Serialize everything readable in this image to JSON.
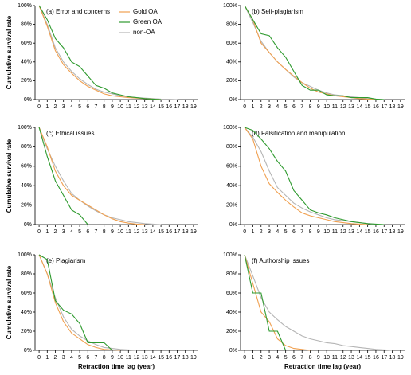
{
  "chart_data": [
    {
      "type": "line",
      "title": "(a) Error and concerns",
      "ylabel": "Cumulative survival rate",
      "legend": "top-right",
      "x": [
        0,
        1,
        2,
        3,
        4,
        5,
        6,
        7,
        8,
        9,
        10,
        11,
        12,
        13,
        14,
        15,
        16,
        17,
        18,
        19
      ],
      "xlim": [
        -0.5,
        19.5
      ],
      "xticks": [
        0,
        1,
        2,
        3,
        4,
        5,
        6,
        7,
        8,
        9,
        10,
        11,
        12,
        13,
        14,
        15,
        16,
        17,
        18,
        19
      ],
      "ylim": [
        0,
        100
      ],
      "yticks": [
        {
          "value": 0,
          "label": "0%"
        },
        {
          "value": 20,
          "label": "20%"
        },
        {
          "value": 40,
          "label": "40%"
        },
        {
          "value": 60,
          "label": "60%"
        },
        {
          "value": 80,
          "label": "80%"
        },
        {
          "value": 100,
          "label": "100%"
        }
      ],
      "series": [
        {
          "name": "Gold OA",
          "color": "#f0a050",
          "values": [
            100,
            78,
            52,
            37,
            28,
            20,
            14,
            10,
            6,
            4,
            3,
            2,
            1.5,
            1,
            0.5,
            0,
            null,
            null,
            null,
            null
          ]
        },
        {
          "name": "Green OA",
          "color": "#2e9a2e",
          "values": [
            100,
            85,
            65,
            55,
            40,
            35,
            25,
            15,
            12,
            7,
            5,
            3,
            2,
            1,
            0.5,
            0,
            null,
            null,
            null,
            null
          ]
        },
        {
          "name": "non-OA",
          "color": "#b5b5b5",
          "values": [
            100,
            80,
            55,
            40,
            30,
            22,
            16,
            11,
            8,
            6,
            4,
            3,
            2,
            1.5,
            1,
            0.5,
            0.3,
            0,
            null,
            null
          ]
        }
      ]
    },
    {
      "type": "line",
      "title": "(b) Self-plagiarism",
      "x": [
        0,
        1,
        2,
        3,
        4,
        5,
        6,
        7,
        8,
        9,
        10,
        11,
        12,
        13,
        14,
        15,
        16,
        17,
        18,
        19
      ],
      "xlim": [
        -0.5,
        19.5
      ],
      "xticks": [
        0,
        1,
        2,
        3,
        4,
        5,
        6,
        7,
        8,
        9,
        10,
        11,
        12,
        13,
        14,
        15,
        16,
        17,
        18,
        19
      ],
      "ylim": [
        0,
        100
      ],
      "yticks": [
        {
          "value": 0,
          "label": "0%"
        },
        {
          "value": 20,
          "label": "20%"
        },
        {
          "value": 40,
          "label": "40%"
        },
        {
          "value": 60,
          "label": "60%"
        },
        {
          "value": 80,
          "label": "80%"
        },
        {
          "value": 100,
          "label": "100%"
        }
      ],
      "series": [
        {
          "color": "#f0a050",
          "values": [
            100,
            85,
            60,
            50,
            40,
            32,
            25,
            18,
            12,
            8,
            6,
            4,
            3,
            2,
            1,
            0.5,
            0,
            null,
            null,
            null
          ]
        },
        {
          "color": "#2e9a2e",
          "values": [
            100,
            85,
            70,
            68,
            55,
            45,
            30,
            15,
            10,
            10,
            5,
            4,
            4,
            2,
            2,
            2,
            0.5,
            0,
            null,
            null
          ]
        },
        {
          "color": "#b5b5b5",
          "values": [
            100,
            82,
            62,
            50,
            40,
            32,
            24,
            18,
            14,
            10,
            7,
            5,
            4,
            3,
            2,
            1,
            0.5,
            0,
            null,
            null
          ]
        }
      ]
    },
    {
      "type": "line",
      "title": "(c) Ethical issues",
      "ylabel": "Cumulative survival rate",
      "x": [
        0,
        1,
        2,
        3,
        4,
        5,
        6,
        7,
        8,
        9,
        10,
        11,
        12,
        13,
        14,
        15,
        16,
        17,
        18,
        19
      ],
      "xlim": [
        -0.5,
        19.5
      ],
      "xticks": [
        0,
        1,
        2,
        3,
        4,
        5,
        6,
        7,
        8,
        9,
        10,
        11,
        12,
        13,
        14,
        15,
        16,
        17,
        18,
        19
      ],
      "ylim": [
        0,
        100
      ],
      "yticks": [
        {
          "value": 0,
          "label": "0%"
        },
        {
          "value": 20,
          "label": "20%"
        },
        {
          "value": 40,
          "label": "40%"
        },
        {
          "value": 60,
          "label": "60%"
        },
        {
          "value": 80,
          "label": "80%"
        },
        {
          "value": 100,
          "label": "100%"
        }
      ],
      "series": [
        {
          "color": "#f0a050",
          "values": [
            100,
            80,
            55,
            40,
            30,
            25,
            20,
            15,
            10,
            6,
            3,
            1.5,
            0.5,
            0,
            null,
            null,
            null,
            null,
            null,
            null
          ]
        },
        {
          "color": "#2e9a2e",
          "values": [
            100,
            70,
            45,
            30,
            15,
            10,
            0,
            null,
            null,
            null,
            null,
            null,
            null,
            null,
            null,
            null,
            null,
            null,
            null,
            null
          ]
        },
        {
          "color": "#b5b5b5",
          "values": [
            100,
            78,
            60,
            45,
            32,
            25,
            19,
            14,
            10,
            7,
            5,
            3,
            2,
            1,
            0.5,
            0,
            null,
            null,
            null,
            null
          ]
        }
      ]
    },
    {
      "type": "line",
      "title": "(d) Falsification and manipulation",
      "x": [
        0,
        1,
        2,
        3,
        4,
        5,
        6,
        7,
        8,
        9,
        10,
        11,
        12,
        13,
        14,
        15,
        16,
        17,
        18,
        19
      ],
      "xlim": [
        -0.5,
        19.5
      ],
      "xticks": [
        0,
        1,
        2,
        3,
        4,
        5,
        6,
        7,
        8,
        9,
        10,
        11,
        12,
        13,
        14,
        15,
        16,
        17,
        18,
        19
      ],
      "ylim": [
        0,
        100
      ],
      "yticks": [
        {
          "value": 0,
          "label": "0%"
        },
        {
          "value": 20,
          "label": "20%"
        },
        {
          "value": 40,
          "label": "40%"
        },
        {
          "value": 60,
          "label": "60%"
        },
        {
          "value": 80,
          "label": "80%"
        },
        {
          "value": 100,
          "label": "100%"
        }
      ],
      "series": [
        {
          "color": "#f0a050",
          "values": [
            100,
            88,
            60,
            42,
            33,
            25,
            18,
            12,
            9,
            7,
            5,
            3,
            2,
            1,
            0.5,
            0,
            null,
            null,
            null,
            null
          ]
        },
        {
          "color": "#2e9a2e",
          "values": [
            100,
            97,
            88,
            78,
            65,
            55,
            35,
            25,
            15,
            12,
            10,
            7,
            5,
            3,
            2,
            1,
            0.5,
            0,
            null,
            null
          ]
        },
        {
          "color": "#b5b5b5",
          "values": [
            100,
            90,
            75,
            55,
            38,
            30,
            22,
            17,
            13,
            10,
            7,
            5,
            4,
            3,
            2,
            1,
            0,
            null,
            null,
            null
          ]
        }
      ]
    },
    {
      "type": "line",
      "title": "(e) Plagiarism",
      "ylabel": "Cumulative survival rate",
      "xlabel": "Retraction time lag (year)",
      "x": [
        0,
        1,
        2,
        3,
        4,
        5,
        6,
        7,
        8,
        9,
        10,
        11,
        12,
        13,
        14,
        15,
        16,
        17,
        18,
        19
      ],
      "xlim": [
        -0.5,
        19.5
      ],
      "xticks": [
        0,
        1,
        2,
        3,
        4,
        5,
        6,
        7,
        8,
        9,
        10,
        11,
        12,
        13,
        14,
        15,
        16,
        17,
        18,
        19
      ],
      "ylim": [
        0,
        100
      ],
      "yticks": [
        {
          "value": 0,
          "label": "0%"
        },
        {
          "value": 20,
          "label": "20%"
        },
        {
          "value": 40,
          "label": "40%"
        },
        {
          "value": 60,
          "label": "60%"
        },
        {
          "value": 80,
          "label": "80%"
        },
        {
          "value": 100,
          "label": "100%"
        }
      ],
      "series": [
        {
          "color": "#f0a050",
          "values": [
            100,
            80,
            50,
            30,
            18,
            12,
            6,
            3,
            1,
            0.5,
            0,
            null,
            null,
            null,
            null,
            null,
            null,
            null,
            null,
            null
          ]
        },
        {
          "color": "#2e9a2e",
          "values": [
            100,
            95,
            52,
            42,
            38,
            28,
            8,
            8,
            8,
            0,
            null,
            null,
            null,
            null,
            null,
            null,
            null,
            null,
            null,
            null
          ]
        },
        {
          "color": "#b5b5b5",
          "values": [
            100,
            80,
            55,
            35,
            22,
            15,
            10,
            6,
            3,
            2,
            1,
            0.5,
            0,
            null,
            null,
            null,
            null,
            null,
            null,
            null
          ]
        }
      ]
    },
    {
      "type": "line",
      "title": "(f) Authorship issues",
      "xlabel": "Retraction time lag (year)",
      "x": [
        0,
        1,
        2,
        3,
        4,
        5,
        6,
        7,
        8,
        9,
        10,
        11,
        12,
        13,
        14,
        15,
        16,
        17,
        18,
        19
      ],
      "xlim": [
        -0.5,
        19.5
      ],
      "xticks": [
        0,
        1,
        2,
        3,
        4,
        5,
        6,
        7,
        8,
        9,
        10,
        11,
        12,
        13,
        14,
        15,
        16,
        17,
        18,
        19
      ],
      "ylim": [
        0,
        100
      ],
      "yticks": [
        {
          "value": 0,
          "label": "0%"
        },
        {
          "value": 20,
          "label": "20%"
        },
        {
          "value": 40,
          "label": "40%"
        },
        {
          "value": 60,
          "label": "60%"
        },
        {
          "value": 80,
          "label": "80%"
        },
        {
          "value": 100,
          "label": "100%"
        }
      ],
      "series": [
        {
          "color": "#f0a050",
          "values": [
            100,
            70,
            40,
            30,
            12,
            5,
            2,
            1,
            0,
            null,
            null,
            null,
            null,
            null,
            null,
            null,
            null,
            null,
            null,
            null
          ]
        },
        {
          "color": "#2e9a2e",
          "values": [
            100,
            60,
            60,
            20,
            20,
            0,
            null,
            null,
            null,
            null,
            null,
            null,
            null,
            null,
            null,
            null,
            null,
            null,
            null,
            null
          ]
        },
        {
          "color": "#b5b5b5",
          "values": [
            100,
            78,
            55,
            40,
            32,
            25,
            20,
            15,
            12,
            10,
            8,
            7,
            5,
            4,
            3,
            2,
            1,
            0.5,
            0,
            null
          ]
        }
      ]
    }
  ]
}
